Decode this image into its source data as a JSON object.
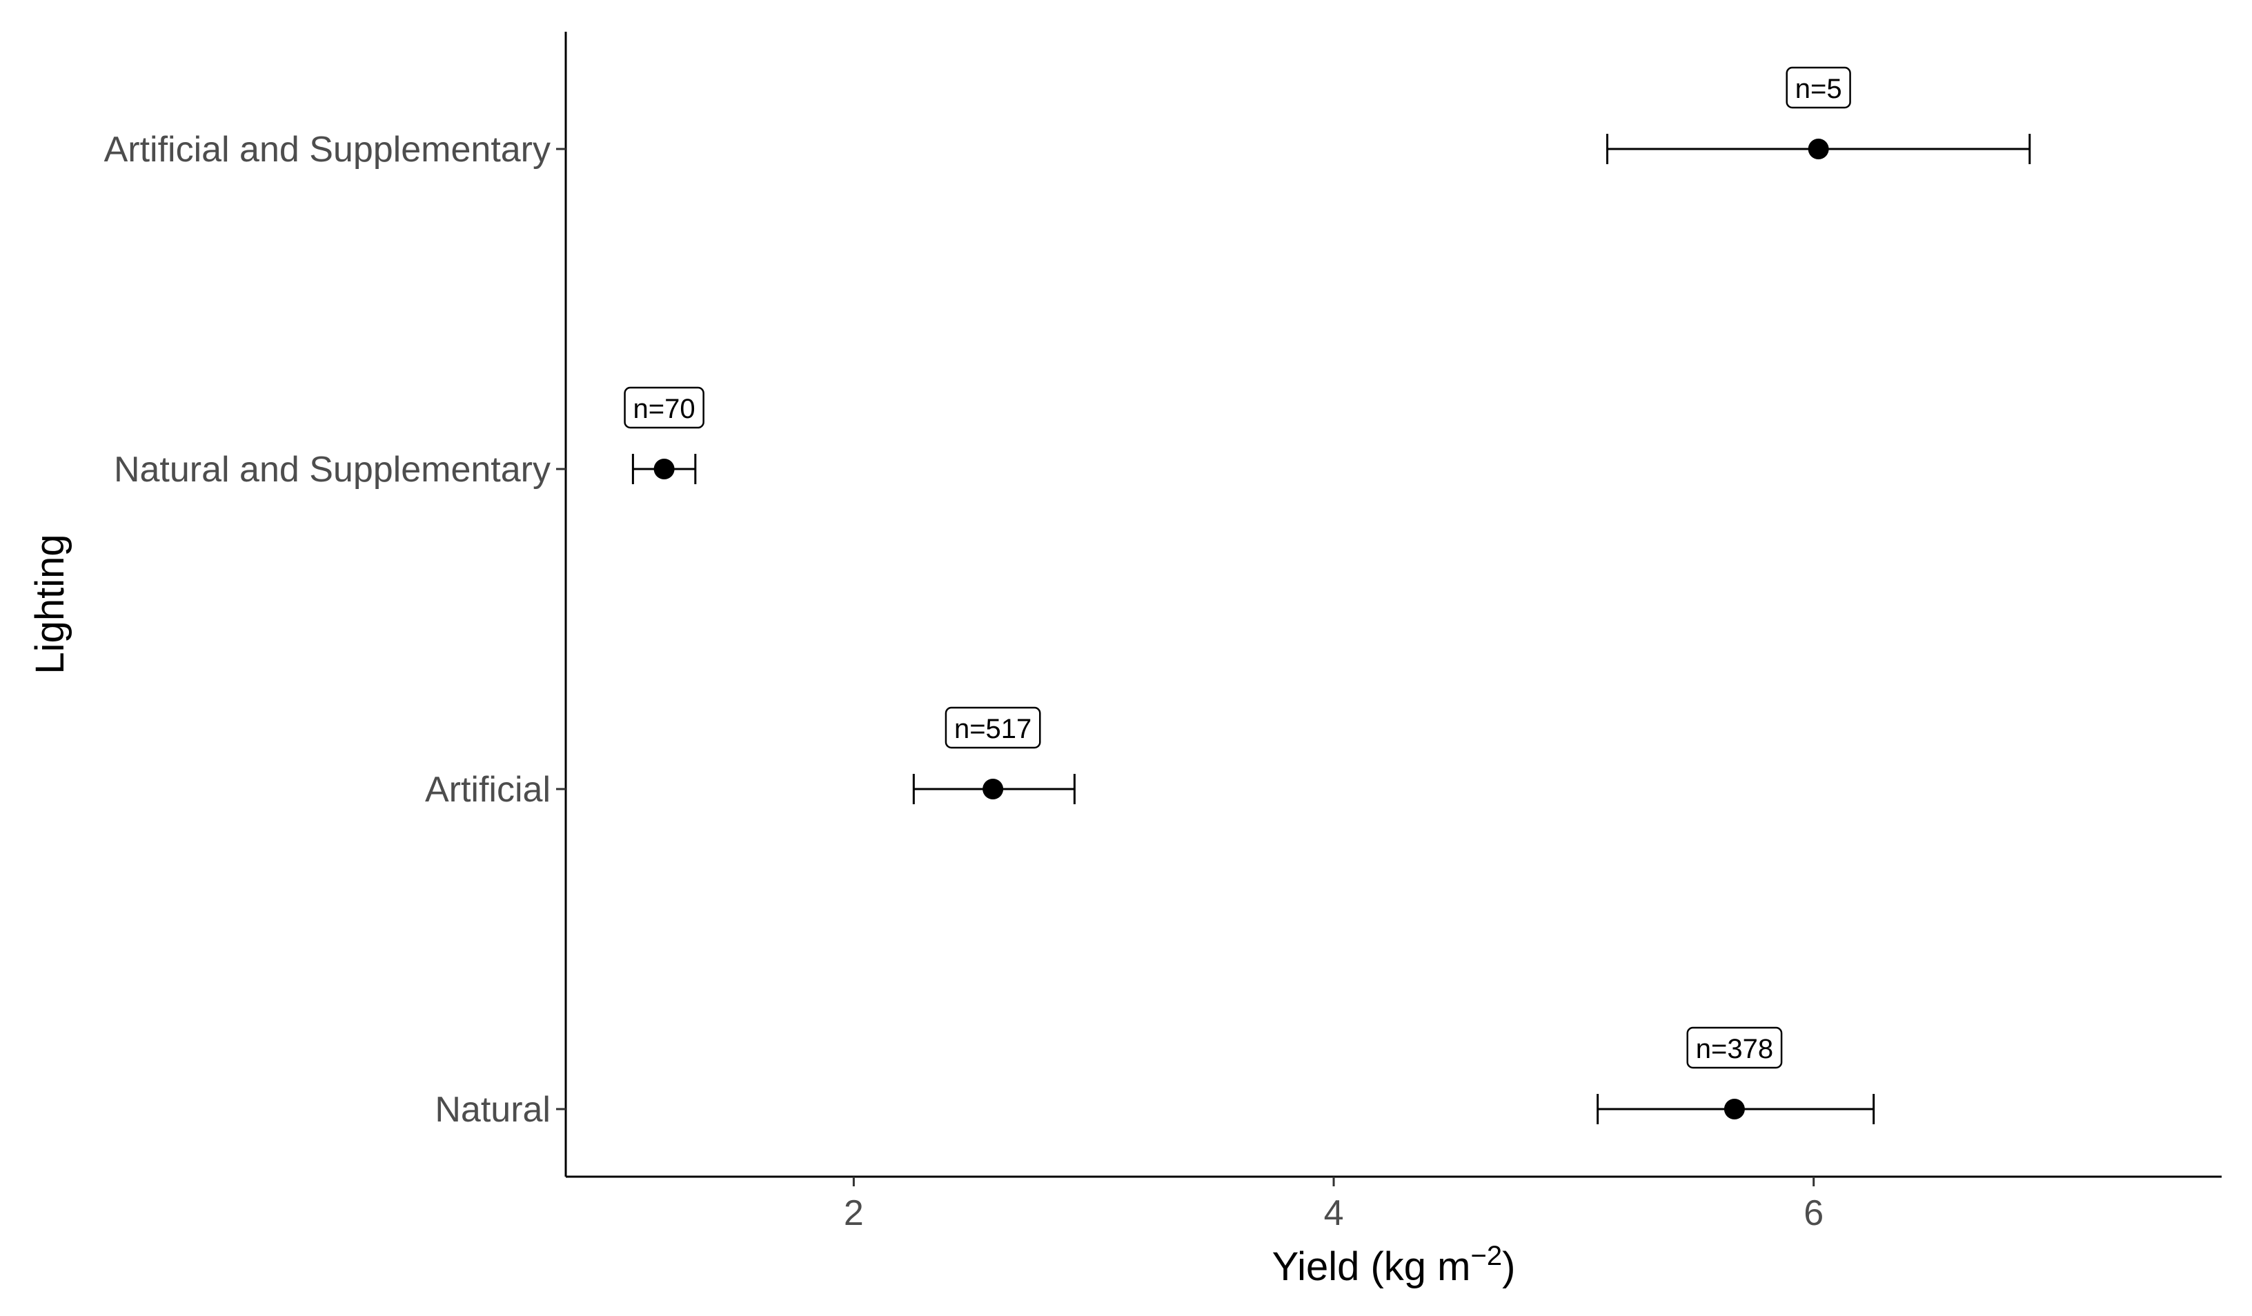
{
  "chart_data": {
    "type": "scatter",
    "subtype": "point-with-horizontal-errorbars",
    "title": "",
    "xlabel": "Yield (kg m",
    "xlabel_superscript": "−2",
    "xlabel_suffix": ")",
    "ylabel": "Lighting",
    "xlim": [
      0.8,
      7.7
    ],
    "xticks": [
      2,
      4,
      6
    ],
    "xtick_labels": [
      "2",
      "4",
      "6"
    ],
    "grid": false,
    "legend": "none",
    "categories": [
      "Natural",
      "Artificial",
      "Natural and Supplementary",
      "Artificial and Supplementary"
    ],
    "points": [
      {
        "category": "Natural",
        "mean": 5.67,
        "lower": 5.1,
        "upper": 6.25,
        "label": "n=378"
      },
      {
        "category": "Artificial",
        "mean": 2.58,
        "lower": 2.25,
        "upper": 2.92,
        "label": "n=517"
      },
      {
        "category": "Natural and Supplementary",
        "mean": 1.21,
        "lower": 1.08,
        "upper": 1.34,
        "label": "n=70"
      },
      {
        "category": "Artificial and Supplementary",
        "mean": 6.02,
        "lower": 5.14,
        "upper": 6.9,
        "label": "n=5"
      }
    ],
    "colors": {
      "point": "#000000",
      "errorbar": "#000000",
      "axis": "#000000",
      "tick_label": "#4d4d4d"
    }
  }
}
